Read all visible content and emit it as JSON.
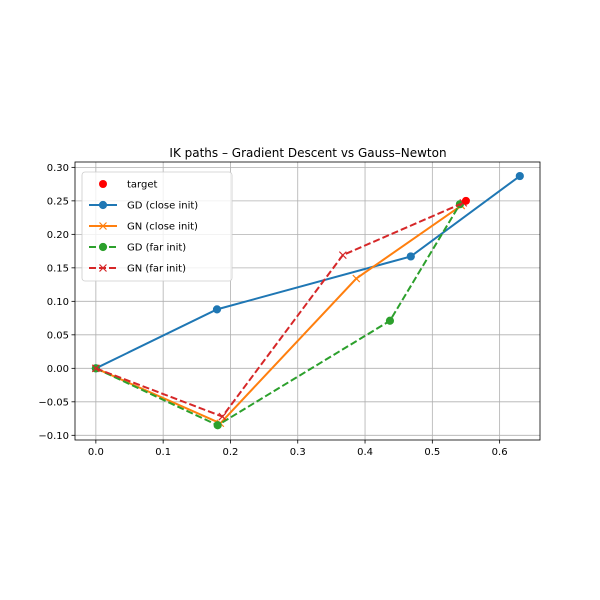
{
  "chart_data": {
    "type": "line",
    "title": "IK paths – Gradient Descent vs Gauss–Newton",
    "xlabel": "",
    "ylabel": "",
    "xlim": [
      -0.031,
      0.66
    ],
    "ylim": [
      -0.107,
      0.308
    ],
    "xticks": [
      0.0,
      0.1,
      0.2,
      0.3,
      0.4,
      0.5,
      0.6
    ],
    "xtick_labels": [
      "0.0",
      "0.1",
      "0.2",
      "0.3",
      "0.4",
      "0.5",
      "0.6"
    ],
    "yticks": [
      -0.1,
      -0.05,
      0.0,
      0.05,
      0.1,
      0.15,
      0.2,
      0.25,
      0.3
    ],
    "ytick_labels": [
      "−0.10",
      "−0.05",
      "0.00",
      "0.05",
      "0.10",
      "0.15",
      "0.20",
      "0.25",
      "0.30"
    ],
    "grid": true,
    "legend_position": "upper-left",
    "target": {
      "name": "target",
      "x": 0.55,
      "y": 0.25,
      "color": "#ff0000"
    },
    "series": [
      {
        "name": "GD (close init)",
        "color": "#1f77b4",
        "linestyle": "solid",
        "marker": "circle",
        "x": [
          0.0,
          0.18,
          0.468,
          0.63
        ],
        "y": [
          0.0,
          0.088,
          0.167,
          0.287
        ]
      },
      {
        "name": "GN (close init)",
        "color": "#ff7f0e",
        "linestyle": "solid",
        "marker": "x",
        "x": [
          0.0,
          0.185,
          0.387,
          0.543
        ],
        "y": [
          0.0,
          -0.082,
          0.134,
          0.243
        ]
      },
      {
        "name": "GD (far init)",
        "color": "#2ca02c",
        "linestyle": "dashed",
        "marker": "circle",
        "x": [
          0.0,
          0.181,
          0.437,
          0.541
        ],
        "y": [
          0.0,
          -0.085,
          0.071,
          0.245
        ]
      },
      {
        "name": "GN (far init)",
        "color": "#d62728",
        "linestyle": "dashed",
        "marker": "x",
        "x": [
          0.0,
          0.188,
          0.367,
          0.546
        ],
        "y": [
          0.0,
          -0.072,
          0.169,
          0.247
        ]
      }
    ]
  }
}
